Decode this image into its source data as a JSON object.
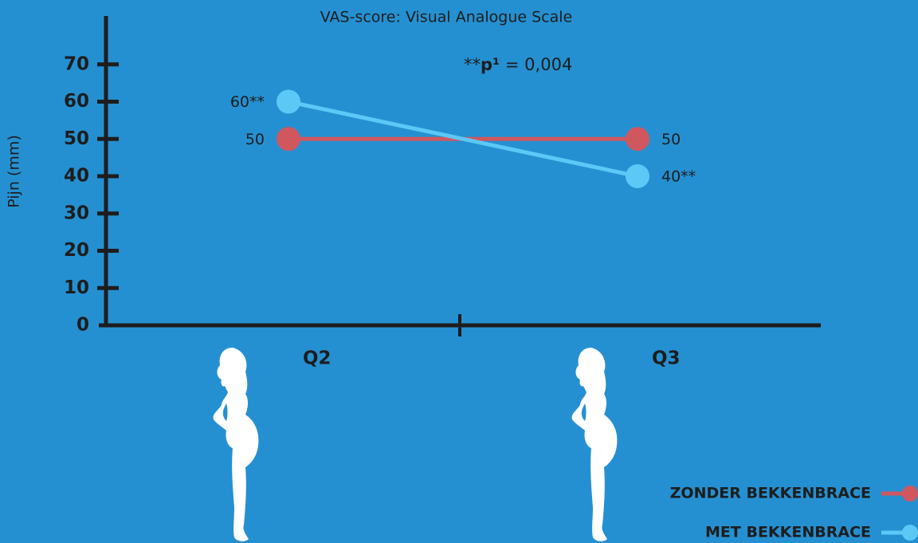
{
  "chart_data": {
    "type": "line",
    "subtitle": "VAS-score: Visual Analogue Scale",
    "y_label": "Pijn (mm)",
    "annotation": {
      "prefix": "**",
      "bold": "p¹",
      "rest": " = 0,004"
    },
    "categories": [
      "Q2",
      "Q3"
    ],
    "series": [
      {
        "name": "ZONDER BEKKENBRACE",
        "color": "#d1575f",
        "values": [
          50,
          50
        ],
        "value_labels": [
          "50",
          "50"
        ]
      },
      {
        "name": "MET BEKKENBRACE",
        "color": "#5cc8f6",
        "values": [
          60,
          40
        ],
        "value_labels": [
          "60**",
          "40**"
        ]
      }
    ],
    "ylim": [
      0,
      83
    ],
    "yticks": [
      0,
      10,
      20,
      30,
      40,
      50,
      60,
      70
    ],
    "legend": "bottom-right"
  }
}
